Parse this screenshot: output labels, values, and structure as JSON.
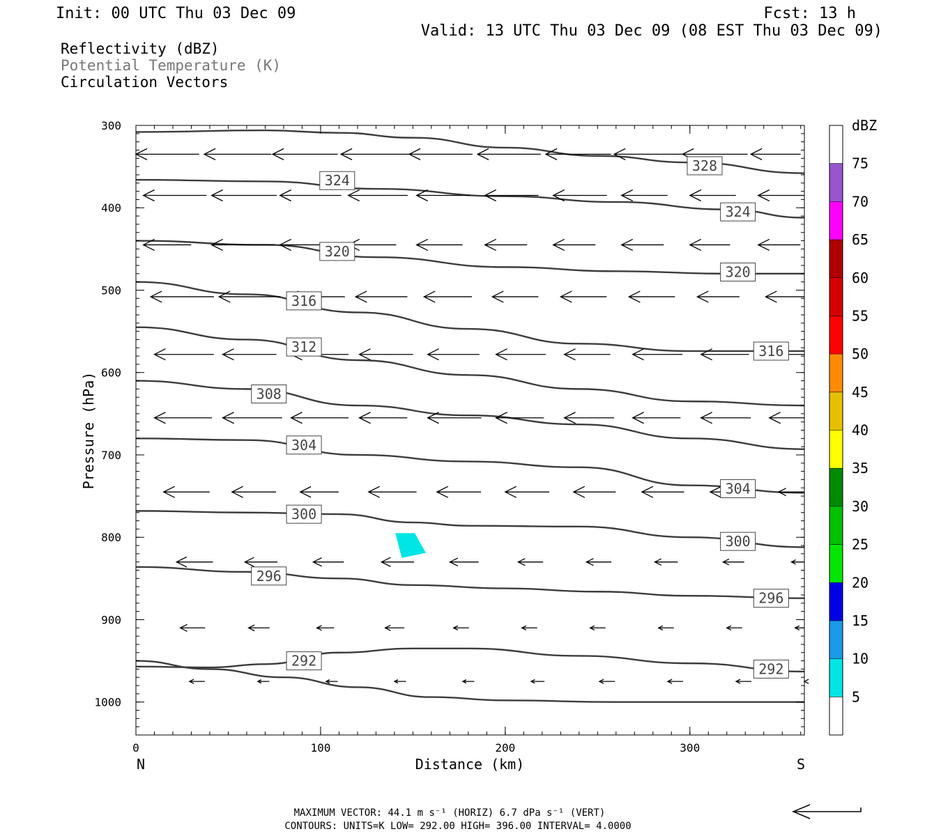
{
  "header": {
    "init": "Init: 00 UTC Thu 03 Dec 09",
    "fcst": "Fcst:   13 h",
    "valid": "Valid: 13 UTC Thu 03 Dec 09 (08 EST Thu 03 Dec 09)"
  },
  "fields": [
    {
      "label": "Reflectivity (dBZ)",
      "color": "#000000"
    },
    {
      "label": "Potential Temperature (K)",
      "color": "#777777"
    },
    {
      "label": "Circulation Vectors",
      "color": "#000000"
    }
  ],
  "footer": {
    "max_vector": "MAXIMUM VECTOR:  44.1 m s⁻¹ (HORIZ)        6.7 dPa s⁻¹ (VERT)",
    "contours": "CONTOURS:  UNITS=K  LOW=   292.00        HIGH=   396.00        INTERVAL=     4.0000"
  },
  "chart_data": {
    "type": "contour",
    "xlabel": "Distance (km)",
    "ylabel": "Pressure (hPa)",
    "xlim": [
      0,
      362
    ],
    "ylim": [
      1040,
      300
    ],
    "x_ticks": [
      0,
      100,
      200,
      300
    ],
    "y_ticks": [
      300,
      400,
      500,
      600,
      700,
      800,
      900,
      1000
    ],
    "x_end_labels": {
      "left": "N",
      "right": "S"
    },
    "colorbar": {
      "title": "dBZ",
      "labels": [
        "5",
        "10",
        "15",
        "20",
        "25",
        "30",
        "35",
        "40",
        "45",
        "50",
        "55",
        "60",
        "65",
        "70",
        "75"
      ],
      "colors": [
        "#ffffff",
        "#00e5e5",
        "#1a9ae8",
        "#0000e6",
        "#00e600",
        "#00c000",
        "#008a00",
        "#ffff00",
        "#e6c000",
        "#ff8c00",
        "#ff0000",
        "#d60000",
        "#b00000",
        "#ff00ff",
        "#9955cc",
        "#ffffff"
      ]
    },
    "reflectivity_cells": [
      {
        "dbz": "5-10",
        "polygon": [
          [
            140.5,
            795
          ],
          [
            144,
            825
          ],
          [
            157,
            819
          ],
          [
            151,
            795
          ]
        ]
      }
    ],
    "theta_contours": [
      {
        "value": 328,
        "points": [
          [
            0,
            308
          ],
          [
            70,
            306
          ],
          [
            110,
            309
          ],
          [
            150,
            315
          ],
          [
            200,
            327
          ],
          [
            250,
            337
          ],
          [
            300,
            345
          ],
          [
            362,
            358
          ]
        ],
        "labels": [
          [
            308,
            349
          ]
        ]
      },
      {
        "value": 324,
        "points": [
          [
            0,
            366
          ],
          [
            70,
            368
          ],
          [
            130,
            377
          ],
          [
            200,
            386
          ],
          [
            260,
            393
          ],
          [
            320,
            402
          ],
          [
            362,
            412
          ]
        ],
        "labels": [
          [
            109,
            367
          ],
          [
            326,
            405
          ]
        ]
      },
      {
        "value": 320,
        "points": [
          [
            0,
            440
          ],
          [
            70,
            445
          ],
          [
            130,
            460
          ],
          [
            200,
            472
          ],
          [
            260,
            477
          ],
          [
            320,
            480
          ],
          [
            362,
            480
          ]
        ],
        "labels": [
          [
            109,
            453
          ],
          [
            326,
            478
          ]
        ]
      },
      {
        "value": 316,
        "points": [
          [
            0,
            490
          ],
          [
            60,
            505
          ],
          [
            120,
            527
          ],
          [
            180,
            547
          ],
          [
            240,
            565
          ],
          [
            300,
            574
          ],
          [
            362,
            574
          ]
        ],
        "labels": [
          [
            91,
            513
          ],
          [
            344,
            574
          ]
        ]
      },
      {
        "value": 312,
        "points": [
          [
            0,
            545
          ],
          [
            60,
            560
          ],
          [
            120,
            585
          ],
          [
            180,
            603
          ],
          [
            240,
            620
          ],
          [
            300,
            635
          ],
          [
            362,
            640
          ]
        ],
        "labels": [
          [
            91,
            569
          ]
        ]
      },
      {
        "value": 308,
        "points": [
          [
            0,
            610
          ],
          [
            60,
            620
          ],
          [
            120,
            640
          ],
          [
            180,
            652
          ],
          [
            240,
            663
          ],
          [
            300,
            680
          ],
          [
            362,
            693
          ]
        ],
        "labels": [
          [
            72,
            626
          ]
        ]
      },
      {
        "value": 304,
        "points": [
          [
            0,
            680
          ],
          [
            60,
            682
          ],
          [
            120,
            700
          ],
          [
            180,
            708
          ],
          [
            240,
            715
          ],
          [
            300,
            737
          ],
          [
            362,
            746
          ]
        ],
        "labels": [
          [
            91,
            688
          ],
          [
            326,
            741
          ]
        ]
      },
      {
        "value": 300,
        "points": [
          [
            0,
            768
          ],
          [
            60,
            770
          ],
          [
            110,
            772
          ],
          [
            150,
            782
          ],
          [
            180,
            786
          ],
          [
            240,
            787
          ],
          [
            300,
            800
          ],
          [
            362,
            812
          ]
        ],
        "labels": [
          [
            91,
            772
          ],
          [
            326,
            805
          ]
        ]
      },
      {
        "value": 296,
        "points": [
          [
            0,
            836
          ],
          [
            60,
            842
          ],
          [
            110,
            850
          ],
          [
            150,
            858
          ],
          [
            200,
            862
          ],
          [
            250,
            866
          ],
          [
            300,
            871
          ],
          [
            362,
            874
          ]
        ],
        "labels": [
          [
            72,
            847
          ],
          [
            344,
            874
          ]
        ]
      },
      {
        "value": 292,
        "points": [
          [
            0,
            957
          ],
          [
            40,
            958
          ],
          [
            70,
            954
          ],
          [
            110,
            940
          ],
          [
            150,
            935
          ],
          [
            180,
            935
          ],
          [
            240,
            944
          ],
          [
            300,
            953
          ],
          [
            362,
            963
          ]
        ],
        "labels": [
          [
            91,
            950
          ],
          [
            344,
            960
          ]
        ]
      },
      {
        "value": "sfc",
        "points": [
          [
            0,
            950
          ],
          [
            40,
            960
          ],
          [
            80,
            970
          ],
          [
            120,
            982
          ],
          [
            160,
            994
          ],
          [
            200,
            998
          ],
          [
            260,
            1000
          ],
          [
            362,
            1000
          ]
        ],
        "labels": []
      }
    ],
    "vectors": [
      {
        "p": 335,
        "xs": [
          0,
          37,
          74,
          111,
          148,
          185,
          222,
          259,
          296,
          333
        ],
        "u": [
          -33,
          -35,
          -34,
          -37,
          -33,
          -33,
          -34,
          -36,
          -34,
          -26
        ]
      },
      {
        "p": 385,
        "xs": [
          4,
          41,
          78,
          115,
          152,
          189,
          226,
          263,
          300,
          337
        ],
        "u": [
          -33,
          -34,
          -32,
          -31,
          -28,
          -28,
          -28,
          -24,
          -24,
          -26
        ]
      },
      {
        "p": 445,
        "xs": [
          4,
          41,
          78,
          115,
          152,
          189,
          226,
          263,
          300,
          337
        ],
        "u": [
          -25,
          -33,
          -26,
          -25,
          -24,
          -22,
          -22,
          -22,
          -21,
          -22
        ]
      },
      {
        "p": 508,
        "xs": [
          8,
          45,
          82,
          119,
          156,
          193,
          230,
          267,
          304,
          341
        ],
        "u": [
          -33,
          -32,
          -30,
          -27,
          -25,
          -24,
          -24,
          -24,
          -22,
          -21
        ]
      },
      {
        "p": 578,
        "xs": [
          10,
          47,
          84,
          121,
          158,
          195,
          232,
          269,
          306,
          343
        ],
        "u": [
          -31,
          -28,
          -30,
          -28,
          -27,
          -26,
          -24,
          -26,
          -25,
          -23
        ]
      },
      {
        "p": 655,
        "xs": [
          10,
          47,
          84,
          121,
          158,
          195,
          232,
          269,
          306,
          343
        ],
        "u": [
          -30,
          -31,
          -30,
          -25,
          -28,
          -25,
          -26,
          -25,
          -26,
          -23
        ]
      },
      {
        "p": 745,
        "xs": [
          15,
          52,
          89,
          126,
          163,
          200,
          237,
          274,
          311,
          348
        ],
        "u": [
          -24,
          -23,
          -20,
          -25,
          -23,
          -23,
          -22,
          -22,
          -19,
          -14
        ]
      },
      {
        "p": 830,
        "xs": [
          22,
          59,
          96,
          133,
          170,
          207,
          244,
          281,
          318,
          355
        ],
        "u": [
          -19,
          -17,
          -16,
          -17,
          -15,
          -13,
          -13,
          -12,
          -11,
          -8
        ]
      },
      {
        "p": 910,
        "xs": [
          24,
          61,
          98,
          135,
          172,
          209,
          246,
          283,
          320,
          357
        ],
        "u": [
          -13,
          -11,
          -9,
          -10,
          -8,
          -8,
          -8,
          -8,
          -8,
          -8
        ]
      },
      {
        "p": 975,
        "xs": [
          29,
          66,
          103,
          140,
          177,
          214,
          251,
          288,
          325,
          362
        ],
        "u": [
          -8,
          -6,
          -6,
          -6,
          -6,
          -7,
          -8,
          -8,
          -8,
          -8
        ]
      }
    ],
    "reference_vector": {
      "u": -44.1
    }
  }
}
